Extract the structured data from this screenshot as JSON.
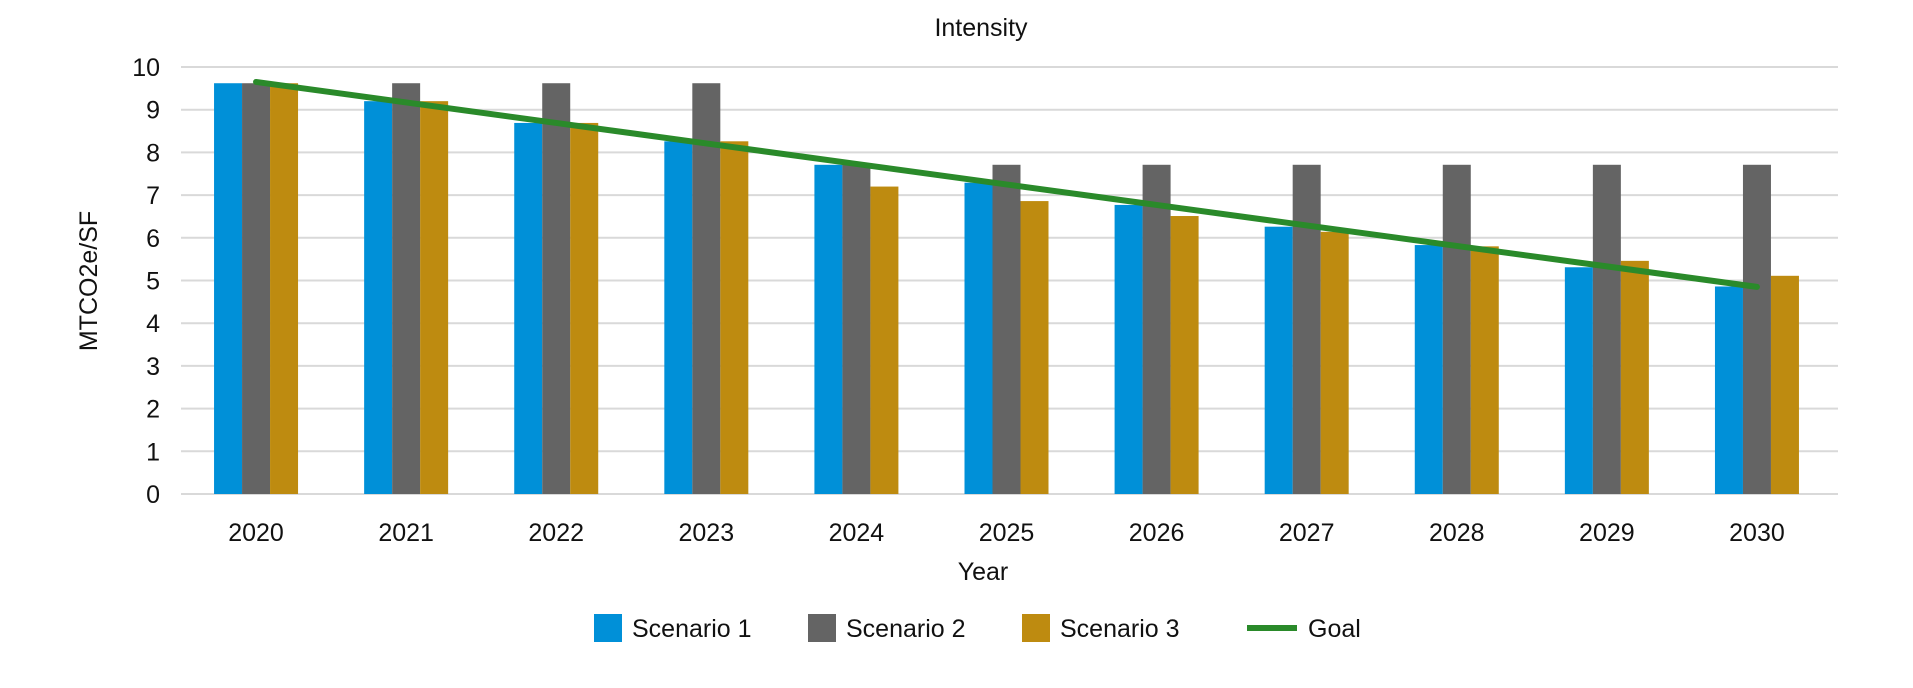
{
  "chart_data": {
    "type": "bar",
    "title": "Intensity",
    "xlabel": "Year",
    "ylabel": "MTCO2e/SF",
    "ylim": [
      0,
      10
    ],
    "yticks": [
      0,
      1,
      2,
      3,
      4,
      5,
      6,
      7,
      8,
      9,
      10
    ],
    "grid": true,
    "legend_position": "bottom",
    "categories": [
      "2020",
      "2021",
      "2022",
      "2023",
      "2024",
      "2025",
      "2026",
      "2027",
      "2028",
      "2029",
      "2030"
    ],
    "series": [
      {
        "name": "Scenario 1",
        "type": "bar",
        "color": "#0090D8",
        "values": [
          9.62,
          9.2,
          8.69,
          8.26,
          7.71,
          7.29,
          6.77,
          6.26,
          5.83,
          5.31,
          4.86
        ]
      },
      {
        "name": "Scenario 2",
        "type": "bar",
        "color": "#646464",
        "values": [
          9.62,
          9.62,
          9.62,
          9.62,
          7.71,
          7.71,
          7.71,
          7.71,
          7.71,
          7.71,
          7.71
        ]
      },
      {
        "name": "Scenario 3",
        "type": "bar",
        "color": "#BE8B10",
        "values": [
          9.62,
          9.2,
          8.69,
          8.26,
          7.2,
          6.86,
          6.51,
          6.14,
          5.8,
          5.46,
          5.11
        ]
      },
      {
        "name": "Goal",
        "type": "line",
        "color": "#2A8A2A",
        "values": [
          9.65,
          9.17,
          8.69,
          8.21,
          7.73,
          7.25,
          6.77,
          6.29,
          5.81,
          5.33,
          4.85
        ]
      }
    ]
  }
}
